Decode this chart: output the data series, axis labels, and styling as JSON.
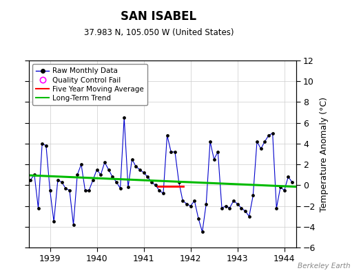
{
  "title": "SAN ISABEL",
  "subtitle": "37.983 N, 105.050 W (United States)",
  "ylabel": "Temperature Anomaly (°C)",
  "watermark": "Berkeley Earth",
  "ylim": [
    -6,
    12
  ],
  "yticks": [
    -6,
    -4,
    -2,
    0,
    2,
    4,
    6,
    8,
    10,
    12
  ],
  "xlim_start": 1938.55,
  "xlim_end": 1944.25,
  "xticks": [
    1939,
    1940,
    1941,
    1942,
    1943,
    1944
  ],
  "raw_data": {
    "x": [
      1938.583,
      1938.667,
      1938.75,
      1938.833,
      1938.917,
      1939.0,
      1939.083,
      1939.167,
      1939.25,
      1939.333,
      1939.417,
      1939.5,
      1939.583,
      1939.667,
      1939.75,
      1939.833,
      1939.917,
      1940.0,
      1940.083,
      1940.167,
      1940.25,
      1940.333,
      1940.417,
      1940.5,
      1940.583,
      1940.667,
      1940.75,
      1940.833,
      1940.917,
      1941.0,
      1941.083,
      1941.167,
      1941.25,
      1941.333,
      1941.417,
      1941.5,
      1941.583,
      1941.667,
      1941.75,
      1941.833,
      1941.917,
      1942.0,
      1942.083,
      1942.167,
      1942.25,
      1942.333,
      1942.417,
      1942.5,
      1942.583,
      1942.667,
      1942.75,
      1942.833,
      1942.917,
      1943.0,
      1943.083,
      1943.167,
      1943.25,
      1943.333,
      1943.417,
      1943.5,
      1943.583,
      1943.667,
      1943.75,
      1943.833,
      1943.917,
      1944.0,
      1944.083,
      1944.167
    ],
    "y": [
      0.5,
      1.0,
      -2.2,
      4.0,
      3.8,
      -0.5,
      -3.5,
      0.5,
      0.3,
      -0.3,
      -0.5,
      -3.8,
      1.0,
      2.0,
      -0.5,
      -0.5,
      0.5,
      1.5,
      1.0,
      2.2,
      1.5,
      0.8,
      0.3,
      -0.3,
      6.5,
      -0.2,
      2.5,
      1.8,
      1.5,
      1.2,
      0.8,
      0.3,
      0.0,
      -0.5,
      -0.8,
      4.8,
      3.2,
      3.2,
      0.3,
      -1.5,
      -1.8,
      -2.0,
      -1.5,
      -3.2,
      -4.5,
      -1.8,
      4.2,
      2.5,
      3.2,
      -2.2,
      -2.0,
      -2.2,
      -1.5,
      -1.8,
      -2.2,
      -2.5,
      -3.0,
      -1.0,
      4.2,
      3.5,
      4.2,
      4.8,
      5.0,
      -2.2,
      -0.2,
      -0.5,
      0.8,
      0.3
    ]
  },
  "trend_line": {
    "x": [
      1938.55,
      1944.25
    ],
    "y": [
      0.95,
      -0.15
    ]
  },
  "moving_avg": {
    "x": [
      1941.3,
      1941.85
    ],
    "y": [
      -0.1,
      -0.1
    ]
  },
  "line_color": "#0000CC",
  "dot_color": "#000000",
  "trend_color": "#00BB00",
  "mavg_color": "#FF0000",
  "qc_color": "#FF00FF",
  "bg_color": "#FFFFFF",
  "grid_color": "#CCCCCC"
}
